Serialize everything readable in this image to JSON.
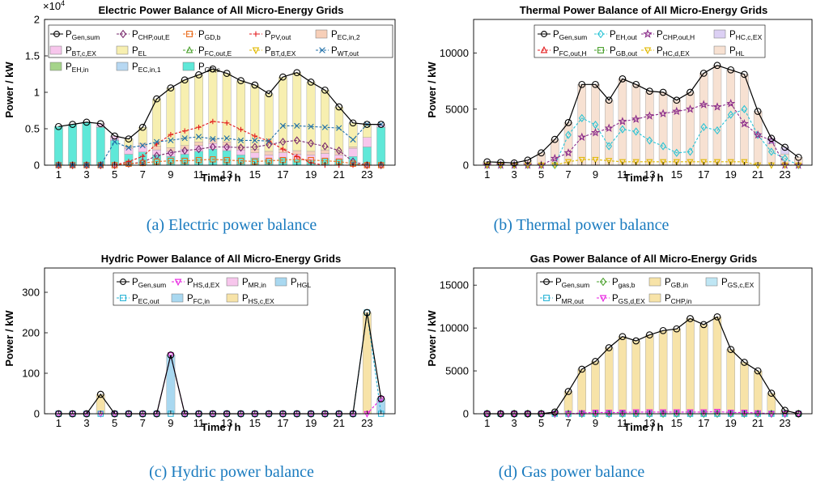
{
  "chart_data": [
    {
      "id": "electric",
      "type": "bar",
      "stacked": true,
      "title": "Electric Power Balance of All Micro-Energy Grids",
      "xlabel": "Time / h",
      "ylabel": "Power / kW",
      "caption": "(a) Electric power balance",
      "exponent_label": "×10",
      "exponent_power": "4",
      "ylim": [
        0,
        20000
      ],
      "yticks": [
        0,
        5000,
        10000,
        15000,
        20000
      ],
      "ytick_labels": [
        "0",
        "0.5",
        "1",
        "1.5",
        "2"
      ],
      "xtick_labels": [
        "1",
        "3",
        "5",
        "7",
        "9",
        "11",
        "13",
        "15",
        "17",
        "19",
        "21",
        "23"
      ],
      "x": [
        1,
        2,
        3,
        4,
        5,
        6,
        7,
        8,
        9,
        10,
        11,
        12,
        13,
        14,
        15,
        16,
        17,
        18,
        19,
        20,
        21,
        22,
        23,
        24
      ],
      "line": {
        "name": "P",
        "sub": "Gen,sum",
        "color": "#000000",
        "marker": "circle",
        "values": [
          5300,
          5600,
          5900,
          5700,
          4000,
          3600,
          5200,
          9100,
          10600,
          11700,
          12400,
          13200,
          12600,
          11600,
          11000,
          9800,
          12100,
          12700,
          11400,
          10300,
          8000,
          5800,
          5600,
          5600
        ]
      },
      "stack_series": [
        {
          "name": "P",
          "sub": "GD,s",
          "color": "#5fe8d8",
          "values": [
            5300,
            5600,
            5900,
            5200,
            3400,
            1500,
            1800,
            1400,
            1200,
            1500,
            1900,
            2200,
            2000,
            1400,
            1000,
            800,
            1000,
            800,
            700,
            900,
            800,
            1200,
            2500,
            5200
          ]
        },
        {
          "name": "P",
          "sub": "BT,c,EX",
          "color": "#f7c6ec",
          "values": [
            0,
            0,
            0,
            500,
            600,
            800,
            800,
            700,
            700,
            700,
            800,
            800,
            700,
            700,
            700,
            600,
            700,
            700,
            700,
            700,
            600,
            1100,
            1300,
            400
          ]
        },
        {
          "name": "P",
          "sub": "EC,in,2",
          "color": "#f7cfb8",
          "values": [
            0,
            0,
            0,
            0,
            0,
            300,
            400,
            500,
            500,
            500,
            500,
            500,
            500,
            500,
            500,
            500,
            500,
            500,
            500,
            500,
            400,
            200,
            0,
            0
          ]
        },
        {
          "name": "P",
          "sub": "EL",
          "color": "#f7efb0",
          "values": [
            0,
            0,
            0,
            0,
            0,
            1000,
            2200,
            6500,
            8200,
            9000,
            9200,
            9700,
            9400,
            9000,
            8800,
            7900,
            9900,
            10700,
            9500,
            8200,
            6200,
            3300,
            1800,
            0
          ]
        }
      ],
      "line_series": [
        {
          "name": "P",
          "sub": "CHP,out,E",
          "color": "#7a2b6e",
          "marker": "diamond",
          "values": [
            0,
            0,
            0,
            0,
            0,
            200,
            400,
            1300,
            1700,
            2000,
            2200,
            2500,
            2500,
            2400,
            2500,
            2800,
            3200,
            3400,
            3000,
            2600,
            2000,
            500,
            0,
            0
          ]
        },
        {
          "name": "P",
          "sub": "GD,b",
          "color": "#ea6a1a",
          "marker": "square",
          "values": [
            0,
            0,
            0,
            0,
            0,
            200,
            300,
            500,
            600,
            600,
            700,
            800,
            700,
            600,
            500,
            600,
            700,
            800,
            700,
            600,
            500,
            200,
            0,
            0
          ]
        },
        {
          "name": "P",
          "sub": "PV,out",
          "color": "#e31a1c",
          "marker": "plus",
          "values": [
            0,
            0,
            0,
            0,
            0,
            500,
            1200,
            2900,
            4200,
            4700,
            5200,
            6000,
            5800,
            4900,
            4000,
            3300,
            2200,
            1200,
            300,
            0,
            0,
            0,
            0,
            0
          ]
        },
        {
          "name": "P",
          "sub": "WT,out",
          "color": "#1f6fa8",
          "marker": "x",
          "values": [
            0,
            0,
            0,
            0,
            3200,
            2400,
            2700,
            3200,
            3400,
            3700,
            3900,
            3600,
            3700,
            3400,
            3400,
            3300,
            5400,
            5400,
            5300,
            5200,
            5100,
            3500,
            5600,
            5600
          ]
        },
        {
          "name": "P",
          "sub": "FC,out,E",
          "color": "#4aa02c",
          "marker": "triangle-up",
          "values": []
        },
        {
          "name": "P",
          "sub": "BT,d,EX",
          "color": "#e0b800",
          "marker": "triangle-down",
          "values": []
        },
        {
          "name": "P",
          "sub": "EH,in",
          "color": "#a5d48a",
          "marker": "patch",
          "values": []
        },
        {
          "name": "P",
          "sub": "EC,in,1",
          "color": "#b7d8f2",
          "marker": "patch",
          "values": []
        }
      ],
      "legend_order": [
        "Gen,sum",
        "CHP,out,E",
        "GD,b",
        "PV,out",
        "EC,in,2",
        "BT,c,EX",
        "EL",
        "FC,out,E",
        "BT,d,EX",
        "WT,out",
        "EH,in",
        "EC,in,1",
        "GD,s"
      ]
    },
    {
      "id": "thermal",
      "type": "bar",
      "stacked": true,
      "title": "Thermal Power Balance of All Micro-Energy Grids",
      "xlabel": "Time / h",
      "ylabel": "Power / kW",
      "caption": "(b) Thermal power balance",
      "ylim": [
        0,
        13000
      ],
      "yticks": [
        0,
        5000,
        10000
      ],
      "ytick_labels": [
        "0",
        "5000",
        "10000"
      ],
      "xtick_labels": [
        "1",
        "3",
        "5",
        "7",
        "9",
        "11",
        "13",
        "15",
        "17",
        "19",
        "21",
        "23"
      ],
      "x": [
        1,
        2,
        3,
        4,
        5,
        6,
        7,
        8,
        9,
        10,
        11,
        12,
        13,
        14,
        15,
        16,
        17,
        18,
        19,
        20,
        21,
        22,
        23,
        24
      ],
      "line": {
        "name": "P",
        "sub": "Gen,sum",
        "color": "#000000",
        "marker": "circle",
        "values": [
          300,
          250,
          200,
          450,
          1100,
          2300,
          3800,
          7200,
          7200,
          5800,
          7700,
          7200,
          6600,
          6500,
          5800,
          6500,
          8200,
          8900,
          8500,
          8100,
          4800,
          2400,
          1600,
          700
        ]
      },
      "stack_series": [
        {
          "name": "P",
          "sub": "HL",
          "color": "#f7e1d2",
          "values": [
            300,
            250,
            200,
            450,
            1100,
            2300,
            3800,
            7200,
            7200,
            5800,
            7700,
            7200,
            6600,
            6500,
            5800,
            6500,
            8200,
            8900,
            8500,
            8100,
            4800,
            1900,
            1000,
            700
          ]
        },
        {
          "name": "P",
          "sub": "HC,c,EX",
          "color": "#dcd0f4",
          "values": [
            0,
            0,
            0,
            0,
            0,
            0,
            0,
            0,
            0,
            0,
            0,
            0,
            0,
            0,
            0,
            0,
            0,
            0,
            0,
            0,
            0,
            500,
            600,
            0
          ]
        }
      ],
      "line_series": [
        {
          "name": "P",
          "sub": "EH,out",
          "color": "#2bc4d6",
          "marker": "diamond",
          "values": [
            0,
            0,
            0,
            0,
            0,
            0,
            2700,
            4200,
            3600,
            1700,
            3200,
            3000,
            2200,
            1700,
            1100,
            1200,
            3400,
            3100,
            4500,
            5000,
            2700,
            1200,
            600,
            0
          ]
        },
        {
          "name": "P",
          "sub": "CHP,out,H",
          "color": "#8a2b8a",
          "marker": "star",
          "values": [
            0,
            0,
            0,
            0,
            0,
            600,
            1100,
            2500,
            2900,
            3300,
            3900,
            4100,
            4400,
            4600,
            4800,
            5000,
            5400,
            5200,
            5500,
            3700,
            2700,
            2200,
            0,
            0
          ]
        },
        {
          "name": "P",
          "sub": "FC,out,H",
          "color": "#e31a1c",
          "marker": "triangle-up",
          "values": []
        },
        {
          "name": "P",
          "sub": "GB,out",
          "color": "#4aa02c",
          "marker": "square",
          "values": []
        },
        {
          "name": "P",
          "sub": "HC,d,EX",
          "color": "#e0b800",
          "marker": "triangle-down",
          "values": [
            0,
            0,
            0,
            0,
            0,
            0,
            300,
            500,
            500,
            400,
            300,
            300,
            300,
            300,
            300,
            300,
            300,
            300,
            300,
            300,
            0,
            0,
            0,
            0
          ]
        }
      ],
      "legend_order": [
        "Gen,sum",
        "EH,out",
        "CHP,out,H",
        "HC,c,EX",
        "FC,out,H",
        "GB,out",
        "HC,d,EX",
        "HL"
      ]
    },
    {
      "id": "hydric",
      "type": "bar",
      "stacked": true,
      "title": "Hydric Power Balance of All Micro-Energy Grids",
      "xlabel": "Time / h",
      "ylabel": "Power / kW",
      "caption": "(c) Hydric power balance",
      "ylim": [
        0,
        360
      ],
      "yticks": [
        0,
        100,
        200,
        300
      ],
      "ytick_labels": [
        "0",
        "100",
        "200",
        "300"
      ],
      "xtick_labels": [
        "1",
        "3",
        "5",
        "7",
        "9",
        "11",
        "13",
        "15",
        "17",
        "19",
        "21",
        "23"
      ],
      "x": [
        1,
        2,
        3,
        4,
        5,
        6,
        7,
        8,
        9,
        10,
        11,
        12,
        13,
        14,
        15,
        16,
        17,
        18,
        19,
        20,
        21,
        22,
        23,
        24
      ],
      "line": {
        "name": "P",
        "sub": "Gen,sum",
        "color": "#000000",
        "marker": "circle",
        "values": [
          0,
          0,
          0,
          48,
          0,
          0,
          0,
          0,
          145,
          0,
          0,
          0,
          0,
          0,
          0,
          0,
          0,
          0,
          0,
          0,
          0,
          0,
          250,
          37
        ]
      },
      "stack_series": [
        {
          "name": "P",
          "sub": "FC,in",
          "color": "#a9d8f0",
          "values": [
            0,
            0,
            0,
            0,
            0,
            0,
            0,
            0,
            145,
            0,
            0,
            0,
            0,
            0,
            0,
            0,
            0,
            0,
            0,
            0,
            0,
            0,
            0,
            37
          ]
        },
        {
          "name": "P",
          "sub": "HS,c,EX",
          "color": "#f7e3a8",
          "values": [
            0,
            0,
            0,
            48,
            0,
            0,
            0,
            0,
            0,
            0,
            0,
            0,
            0,
            0,
            0,
            0,
            0,
            0,
            0,
            0,
            0,
            0,
            250,
            0
          ]
        }
      ],
      "line_series": [
        {
          "name": "P",
          "sub": "HS,d,EX",
          "color": "#e81ce0",
          "marker": "triangle-down",
          "values": [
            0,
            0,
            0,
            0,
            0,
            0,
            0,
            0,
            145,
            0,
            0,
            0,
            0,
            0,
            0,
            0,
            0,
            0,
            0,
            0,
            0,
            0,
            0,
            37
          ]
        },
        {
          "name": "P",
          "sub": "EC,out",
          "color": "#2bb4d6",
          "marker": "square",
          "values": [
            0,
            0,
            0,
            0,
            0,
            0,
            0,
            0,
            0,
            0,
            0,
            0,
            0,
            0,
            0,
            0,
            0,
            0,
            0,
            0,
            0,
            0,
            250,
            0
          ]
        },
        {
          "name": "P",
          "sub": "MR,in",
          "color": "#f7c6ec",
          "marker": "patch",
          "values": []
        },
        {
          "name": "P",
          "sub": "HGL",
          "color": "#a9d8f0",
          "marker": "patch",
          "values": []
        }
      ],
      "legend_order": [
        "Gen,sum",
        "HS,d,EX",
        "MR,in",
        "HGL",
        "EC,out",
        "FC,in",
        "HS,c,EX"
      ]
    },
    {
      "id": "gas",
      "type": "bar",
      "stacked": true,
      "title": "Gas Power Balance of All Micro-Energy Grids",
      "xlabel": "Time / h",
      "ylabel": "Power / kW",
      "caption": "(d) Gas power balance",
      "ylim": [
        0,
        17000
      ],
      "yticks": [
        0,
        5000,
        10000,
        15000
      ],
      "ytick_labels": [
        "0",
        "5000",
        "10000",
        "15000"
      ],
      "xtick_labels": [
        "1",
        "3",
        "5",
        "7",
        "9",
        "11",
        "13",
        "15",
        "17",
        "19",
        "21",
        "23"
      ],
      "x": [
        1,
        2,
        3,
        4,
        5,
        6,
        7,
        8,
        9,
        10,
        11,
        12,
        13,
        14,
        15,
        16,
        17,
        18,
        19,
        20,
        21,
        22,
        23,
        24
      ],
      "line": {
        "name": "P",
        "sub": "Gen,sum",
        "color": "#000000",
        "marker": "circle",
        "values": [
          0,
          0,
          0,
          0,
          0,
          200,
          2600,
          5200,
          6100,
          7700,
          9000,
          8500,
          9200,
          9700,
          9900,
          11100,
          10400,
          11300,
          7500,
          6000,
          5000,
          2400,
          400,
          0
        ]
      },
      "stack_series": [
        {
          "name": "P",
          "sub": "CHP,in",
          "color": "#f7e3a8",
          "values": [
            0,
            0,
            0,
            0,
            0,
            200,
            2600,
            5200,
            6100,
            7700,
            9000,
            8500,
            9200,
            9700,
            9900,
            11100,
            10400,
            11300,
            7500,
            6000,
            5000,
            2400,
            400,
            0
          ]
        },
        {
          "name": "P",
          "sub": "GB,in",
          "color": "#f7e3a8",
          "values": []
        },
        {
          "name": "P",
          "sub": "GS,c,EX",
          "color": "#bfe6f4",
          "values": []
        }
      ],
      "line_series": [
        {
          "name": "P",
          "sub": "gas,b",
          "color": "#4aa02c",
          "marker": "diamond",
          "values": [
            0,
            0,
            0,
            0,
            0,
            0,
            0,
            0,
            0,
            0,
            0,
            0,
            0,
            0,
            0,
            0,
            0,
            0,
            0,
            0,
            0,
            0,
            0,
            0
          ]
        },
        {
          "name": "P",
          "sub": "MR,out",
          "color": "#2bb4d6",
          "marker": "square",
          "values": [
            0,
            0,
            0,
            0,
            0,
            0,
            0,
            0,
            0,
            0,
            0,
            0,
            0,
            0,
            0,
            0,
            0,
            0,
            0,
            0,
            0,
            0,
            0,
            0
          ]
        },
        {
          "name": "P",
          "sub": "GS,d,EX",
          "color": "#e81ce0",
          "marker": "triangle-down",
          "values": [
            0,
            0,
            0,
            0,
            0,
            0,
            0,
            100,
            150,
            150,
            150,
            200,
            200,
            200,
            200,
            200,
            200,
            250,
            150,
            150,
            100,
            0,
            0,
            0
          ]
        }
      ],
      "legend_order": [
        "Gen,sum",
        "gas,b",
        "GB,in",
        "GS,c,EX",
        "MR,out",
        "GS,d,EX",
        "CHP,in"
      ]
    }
  ]
}
